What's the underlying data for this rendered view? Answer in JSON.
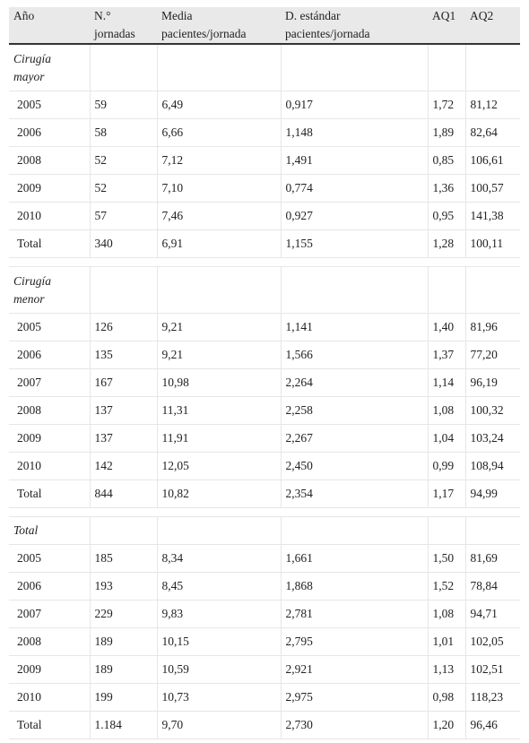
{
  "table": {
    "columns": [
      "Año",
      "N.° jornadas",
      "Media pacientes/jornada",
      "D. estándar pacientes/jornada",
      "AQ1",
      "AQ2"
    ],
    "sections": [
      {
        "title": "Cirugía mayor",
        "rows": [
          [
            "2005",
            "59",
            "6,49",
            "0,917",
            "1,72",
            "81,12"
          ],
          [
            "2006",
            "58",
            "6,66",
            "1,148",
            "1,89",
            "82,64"
          ],
          [
            "2008",
            "52",
            "7,12",
            "1,491",
            "0,85",
            "106,61"
          ],
          [
            "2009",
            "52",
            "7,10",
            "0,774",
            "1,36",
            "100,57"
          ],
          [
            "2010",
            "57",
            "7,46",
            "0,927",
            "0,95",
            "141,38"
          ],
          [
            "Total",
            "340",
            "6,91",
            "1,155",
            "1,28",
            "100,11"
          ]
        ]
      },
      {
        "title": "Cirugía menor",
        "rows": [
          [
            "2005",
            "126",
            "9,21",
            "1,141",
            "1,40",
            "81,96"
          ],
          [
            "2006",
            "135",
            "9,21",
            "1,566",
            "1,37",
            "77,20"
          ],
          [
            "2007",
            "167",
            "10,98",
            "2,264",
            "1,14",
            "96,19"
          ],
          [
            "2008",
            "137",
            "11,31",
            "2,258",
            "1,08",
            "100,32"
          ],
          [
            "2009",
            "137",
            "11,91",
            "2,267",
            "1,04",
            "103,24"
          ],
          [
            "2010",
            "142",
            "12,05",
            "2,450",
            "0,99",
            "108,94"
          ],
          [
            "Total",
            "844",
            "10,82",
            "2,354",
            "1,17",
            "94,99"
          ]
        ]
      },
      {
        "title": "Total",
        "rows": [
          [
            "2005",
            "185",
            "8,34",
            "1,661",
            "1,50",
            "81,69"
          ],
          [
            "2006",
            "193",
            "8,45",
            "1,868",
            "1,52",
            "78,84"
          ],
          [
            "2007",
            "229",
            "9,83",
            "2,781",
            "1,08",
            "94,71"
          ],
          [
            "2008",
            "189",
            "10,15",
            "2,795",
            "1,01",
            "102,05"
          ],
          [
            "2009",
            "189",
            "10,59",
            "2,921",
            "1,13",
            "102,51"
          ],
          [
            "2010",
            "199",
            "10,73",
            "2,975",
            "0,98",
            "118,23"
          ],
          [
            "Total",
            "1.184",
            "9,70",
            "2,730",
            "1,20",
            "96,46"
          ]
        ]
      }
    ]
  }
}
